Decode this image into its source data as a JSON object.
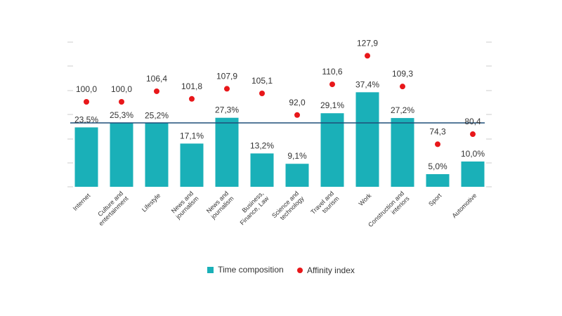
{
  "chart_data": {
    "type": "bar",
    "categories": [
      "Internet",
      "Culture and entertainment",
      "Lifestyle",
      "News and journalism",
      "News and journalism",
      "Business, Finance, Law",
      "Science and technology",
      "Travel and tourism",
      "Work",
      "Construction and interiors",
      "Sport",
      "Automotive"
    ],
    "category_lines": [
      [
        "Internet"
      ],
      [
        "Culture and",
        "entertainment"
      ],
      [
        "Lifestyle"
      ],
      [
        "News and",
        "journalism"
      ],
      [
        "News and",
        "journalism"
      ],
      [
        "Business,",
        "Finance, Law"
      ],
      [
        "Science and",
        "technology"
      ],
      [
        "Travel and",
        "tourism"
      ],
      [
        "Work"
      ],
      [
        "Construction and",
        "interiors"
      ],
      [
        "Sport"
      ],
      [
        "Automotive"
      ]
    ],
    "series": [
      {
        "name": "Time composition",
        "kind": "bar",
        "color": "#1ab0b8",
        "values": [
          23.5,
          25.3,
          25.2,
          17.1,
          27.3,
          13.2,
          9.1,
          29.1,
          37.4,
          27.2,
          5.0,
          10.0
        ],
        "labels": [
          "23,5%",
          "25,3%",
          "25,2%",
          "17,1%",
          "27,3%",
          "13,2%",
          "9,1%",
          "29,1%",
          "37,4%",
          "27,2%",
          "5,0%",
          "10,0%"
        ]
      },
      {
        "name": "Affinity index",
        "kind": "point",
        "color": "#e8171a",
        "values": [
          100.0,
          100.0,
          106.4,
          101.8,
          107.9,
          105.1,
          92.0,
          110.6,
          127.9,
          109.3,
          74.3,
          80.4
        ],
        "labels": [
          "100,0",
          "100,0",
          "106,4",
          "101,8",
          "107,9",
          "105,1",
          "92,0",
          "110,6",
          "127,9",
          "109,3",
          "74,3",
          "80,4"
        ]
      }
    ],
    "reference_line": {
      "value": 25.0,
      "color": "#1f4e79"
    },
    "ylim_bars": [
      0,
      50
    ],
    "ylim_index": [
      0,
      150
    ],
    "grid": false,
    "legend_position": "bottom",
    "title": "",
    "xlabel": "",
    "ylabel": ""
  }
}
